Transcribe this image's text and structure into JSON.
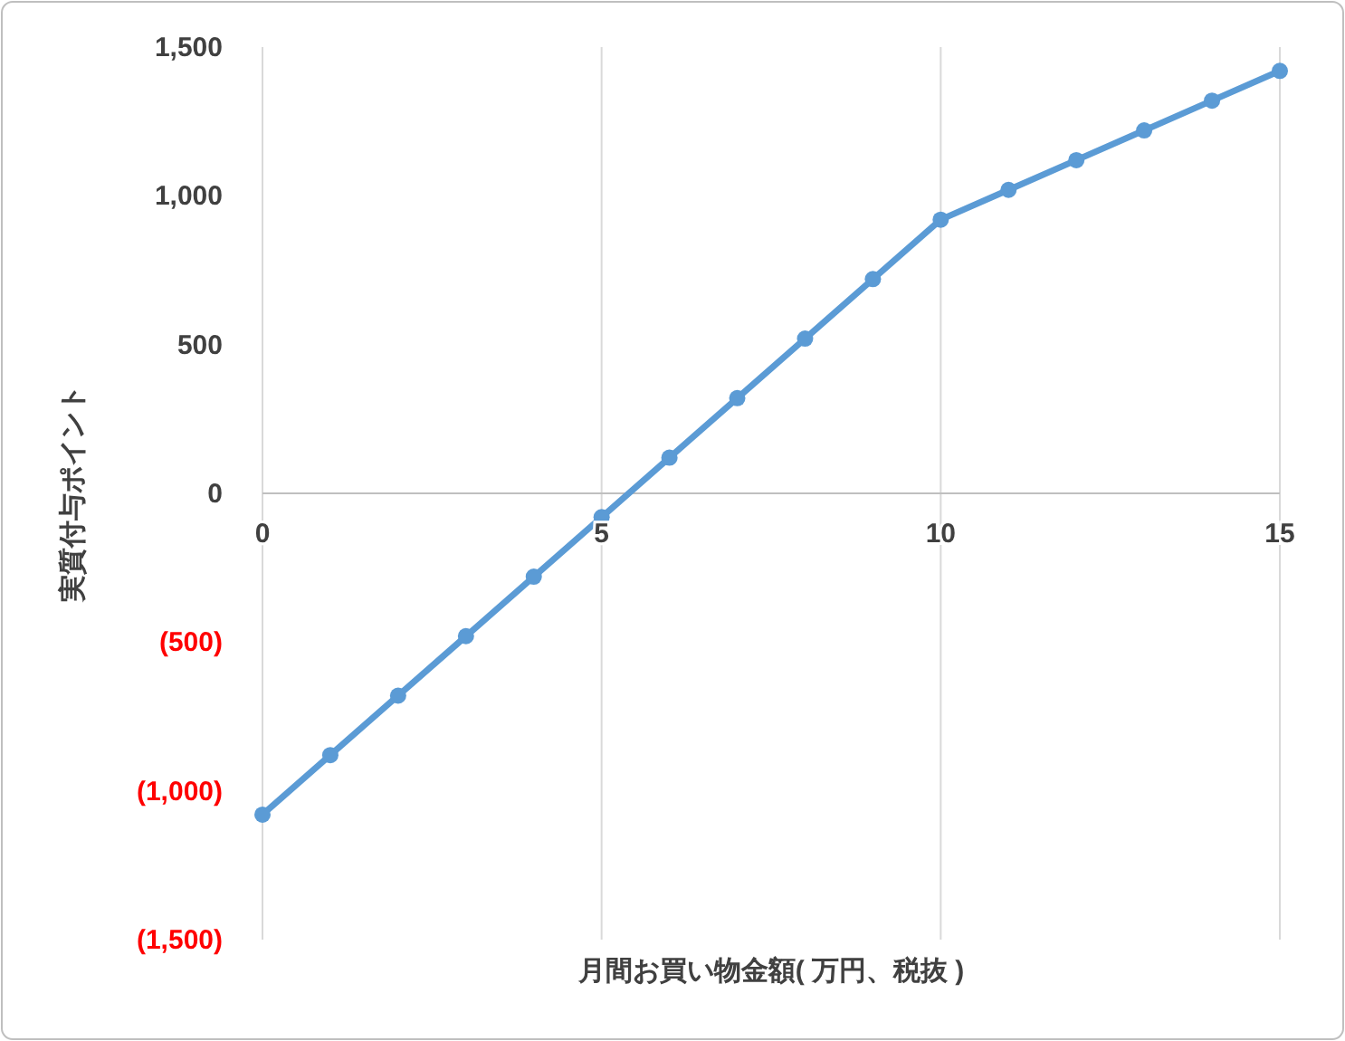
{
  "chart_data": {
    "type": "line",
    "xlabel": "月間お買い物金額( 万円、税抜 )",
    "ylabel": "実質付与ポイント",
    "x": [
      0,
      1,
      2,
      3,
      4,
      5,
      6,
      7,
      8,
      9,
      10,
      11,
      12,
      13,
      14,
      15
    ],
    "series": [
      {
        "color": "#5b9bd5",
        "values": [
          -1080,
          -880,
          -680,
          -480,
          -280,
          -80,
          120,
          320,
          520,
          720,
          920,
          1020,
          1120,
          1220,
          1320,
          1420
        ]
      }
    ],
    "xlim": [
      0,
      15
    ],
    "xticks": [
      0,
      5,
      10,
      15
    ],
    "ylim": [
      -1500,
      1500
    ],
    "yticks": [
      {
        "value": -1500,
        "label": "(1,500)"
      },
      {
        "value": -1000,
        "label": "(1,000)"
      },
      {
        "value": -500,
        "label": "(500)"
      },
      {
        "value": 0,
        "label": "0"
      },
      {
        "value": 500,
        "label": "500"
      },
      {
        "value": 1000,
        "label": "1,000"
      },
      {
        "value": 1500,
        "label": "1,500"
      }
    ],
    "grid": "x",
    "marker": "circle",
    "line_style": "solid"
  }
}
